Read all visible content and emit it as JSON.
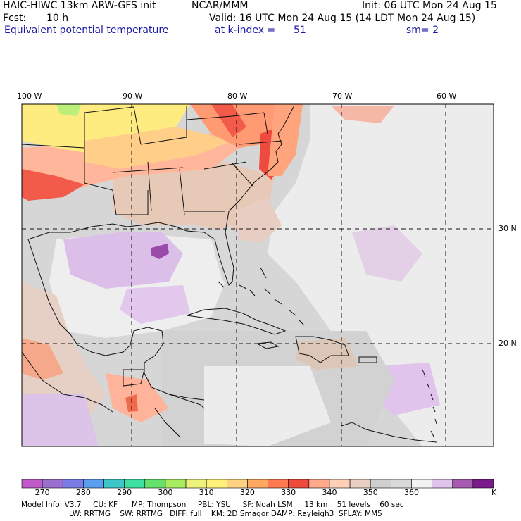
{
  "header": {
    "model": "HAIC-HIWC 13km ARW-GFS init",
    "center": "NCAR/MMM",
    "init": "Init: 06 UTC Mon 24 Aug 15",
    "fcst_label": "Fcst:",
    "fcst_value": "10 h",
    "valid": "Valid: 16 UTC Mon 24 Aug 15 (14 LDT Mon 24 Aug 15)",
    "field": "Equivalent potential temperature",
    "level": "at k-index =",
    "level_value": "51",
    "smooth": "sm= 2"
  },
  "map": {
    "lon_labels": [
      "100 W",
      "90 W",
      "80 W",
      "70 W",
      "60 W"
    ],
    "lat_labels": [
      "30 N",
      "20 N"
    ]
  },
  "colorbar": {
    "unit": "K",
    "tick_labels": [
      "270",
      "280",
      "290",
      "300",
      "310",
      "320",
      "330",
      "340",
      "350",
      "360"
    ],
    "colors": [
      "#c05ac8",
      "#9a6fd0",
      "#7a7de6",
      "#5a9ef0",
      "#3ec6c8",
      "#3ee0a0",
      "#66e26a",
      "#a8ec62",
      "#eef27a",
      "#fff07a",
      "#ffd282",
      "#ffa860",
      "#ff7a50",
      "#f04a3c",
      "#ffa88a",
      "#ffd0b8",
      "#e8cfc2",
      "#cfcfcf",
      "#dadada",
      "#f2f2f2",
      "#e0c4ec",
      "#a65ab0",
      "#7a1a8a"
    ]
  },
  "footer": {
    "line1": "Model Info: V3.7     CU: KF      MP: Thompson     PBL: YSU     SF: Noah LSM     13 km    51 levels    60 sec",
    "line2": "LW: RRTMG    SW: RRTMG   DIFF: full    KM: 2D Smagor DAMP: Rayleigh3  SFLAY: MM5"
  }
}
